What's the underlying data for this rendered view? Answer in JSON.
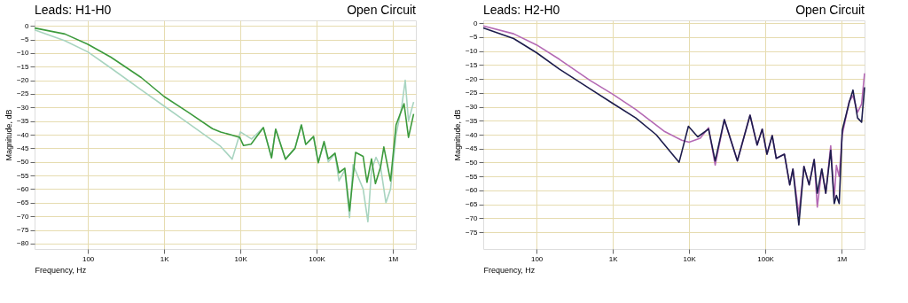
{
  "chart_data": [
    {
      "type": "line",
      "title": "Leads: H1-H0",
      "annotations": [
        "Open Circuit"
      ],
      "xlabel": "Frequency, Hz",
      "ylabel": "Magnitude, dB",
      "log": "x",
      "grid": true,
      "line_style": "solid",
      "xlim": [
        20,
        2000000
      ],
      "ylim": [
        -82,
        2
      ],
      "xticks": [
        100,
        {
          "value": 1000,
          "label": "1K"
        },
        {
          "value": 10000,
          "label": "10K"
        },
        {
          "value": 100000,
          "label": "100K"
        },
        {
          "value": 1000000,
          "label": "1M"
        }
      ],
      "yticks": [
        0,
        -5,
        -10,
        -15,
        -20,
        -25,
        -30,
        -35,
        -40,
        -45,
        -50,
        -55,
        -60,
        -65,
        -70,
        -75,
        -80
      ],
      "series": [
        {
          "color": "#a8d4c0",
          "x": [
            20,
            50,
            100,
            200,
            500,
            1000,
            2000,
            5500,
            7800,
            10000,
            14000,
            20000,
            25600,
            29000,
            39000,
            52000,
            63000,
            72000,
            91000,
            105000,
            125000,
            142000,
            174000,
            196000,
            234000,
            270000,
            300000,
            407000,
            470000,
            524000,
            600000,
            690000,
            810000,
            930000,
            1100000,
            1300000,
            1450000,
            1600000,
            1870000
          ],
          "values": [
            -1.5,
            -5.5,
            -9.6,
            -15.5,
            -23.5,
            -29.5,
            -35.5,
            -44.3,
            -49,
            -39,
            -41.6,
            -37.4,
            -48.5,
            -38,
            -49,
            -45,
            -36.4,
            -43.6,
            -40.7,
            -50.3,
            -43,
            -50,
            -47,
            -57,
            -53,
            -70.5,
            -51,
            -60,
            -72,
            -53,
            -48.3,
            -52,
            -65,
            -60,
            -40,
            -30,
            -20,
            -35,
            -28
          ]
        },
        {
          "color": "#3c9a3c",
          "x": [
            20,
            50,
            100,
            200,
            500,
            1000,
            2000,
            4300,
            5500,
            9800,
            11000,
            13800,
            20000,
            25600,
            29000,
            39000,
            52000,
            63000,
            72000,
            91000,
            105000,
            125000,
            142000,
            174000,
            196000,
            234000,
            270000,
            324000,
            407000,
            457000,
            524000,
            590000,
            690000,
            760000,
            930000,
            1100000,
            1400000,
            1600000,
            1870000
          ],
          "values": [
            -0.8,
            -3,
            -6.8,
            -11.5,
            -19,
            -26,
            -31.5,
            -37.8,
            -39,
            -41,
            -44,
            -43.5,
            -37.4,
            -48.5,
            -38,
            -49,
            -45,
            -36.4,
            -43.6,
            -40.7,
            -50.3,
            -42.5,
            -48.9,
            -46.8,
            -54,
            -52.3,
            -68,
            -46.5,
            -48,
            -57.5,
            -48.9,
            -58,
            -51.8,
            -44.5,
            -57,
            -36.4,
            -28.6,
            -41,
            -32.4
          ]
        }
      ]
    },
    {
      "type": "line",
      "title": "Leads: H2-H0",
      "annotations": [
        "Open Circuit"
      ],
      "xlabel": "Frequency, Hz",
      "ylabel": "Magnitude, dB",
      "log": "x",
      "grid": true,
      "line_style": "solid",
      "xlim": [
        20,
        2000000
      ],
      "ylim": [
        -81,
        1
      ],
      "xticks": [
        100,
        {
          "value": 1000,
          "label": "1K"
        },
        {
          "value": 10000,
          "label": "10K"
        },
        {
          "value": 100000,
          "label": "100K"
        },
        {
          "value": 1000000,
          "label": "1M"
        }
      ],
      "yticks": [
        0,
        -5,
        -10,
        -15,
        -20,
        -25,
        -30,
        -35,
        -40,
        -45,
        -50,
        -55,
        -60,
        -65,
        -70,
        -75
      ],
      "series": [
        {
          "color": "#b469b4",
          "x": [
            20,
            50,
            100,
            200,
            500,
            1000,
            2000,
            4800,
            8000,
            10000,
            14000,
            18000,
            22000,
            29000,
            43000,
            63000,
            78000,
            91000,
            105000,
            123000,
            139000,
            178000,
            209000,
            230000,
            275000,
            321000,
            375000,
            437000,
            480000,
            550000,
            620000,
            720000,
            800000,
            855000,
            930000,
            1020000,
            1260000,
            1410000,
            1620000,
            1830000,
            2000000
          ],
          "values": [
            -1,
            -3.8,
            -7.8,
            -13,
            -20.5,
            -25.5,
            -31,
            -38.9,
            -42,
            -42.7,
            -41.3,
            -37.5,
            -50.9,
            -34.6,
            -49.4,
            -33,
            -43.7,
            -38,
            -47,
            -40.3,
            -48.5,
            -47,
            -58,
            -52.3,
            -68.6,
            -51.4,
            -58,
            -48.9,
            -66,
            -52.3,
            -61,
            -44,
            -62.8,
            -51,
            -55,
            -40,
            -28,
            -26,
            -32,
            -29,
            -18
          ]
        },
        {
          "color": "#1c1c4c",
          "x": [
            20,
            50,
            100,
            200,
            500,
            1000,
            2000,
            3700,
            7400,
            9800,
            13000,
            18000,
            22000,
            29000,
            43000,
            63000,
            78000,
            91000,
            105000,
            123000,
            139000,
            178000,
            209000,
            230000,
            275000,
            321000,
            375000,
            437000,
            480000,
            550000,
            620000,
            720000,
            800000,
            855000,
            930000,
            1020000,
            1260000,
            1410000,
            1620000,
            1830000,
            2000000
          ],
          "values": [
            -1.7,
            -5.5,
            -10.6,
            -16.5,
            -23.5,
            -28.8,
            -34,
            -40,
            -49.9,
            -37,
            -40.8,
            -38,
            -49.4,
            -34.6,
            -49.4,
            -33,
            -43.7,
            -38,
            -47,
            -40.3,
            -48.5,
            -47,
            -58,
            -52.3,
            -72.4,
            -51.4,
            -58,
            -48.9,
            -61,
            -52.3,
            -61,
            -45.6,
            -64.7,
            -61.8,
            -64.7,
            -38.4,
            -28.4,
            -24,
            -34,
            -35.5,
            -23
          ]
        }
      ]
    }
  ]
}
